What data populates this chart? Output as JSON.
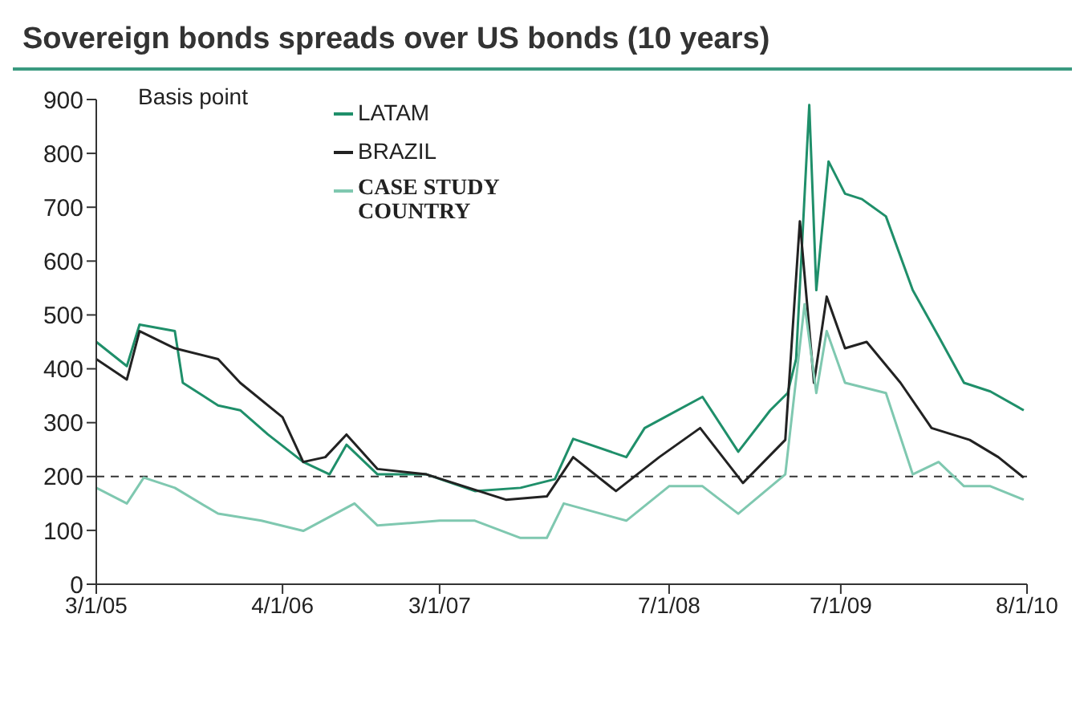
{
  "chart_data": {
    "type": "line",
    "title": "Sovereign bonds spreads over US bonds (10 years)",
    "ylabel": "Basis point",
    "xlim": [
      "2005-03-01",
      "2010-08-01"
    ],
    "xticks": [
      {
        "value": "2005-03-01",
        "label": "3/1/05"
      },
      {
        "value": "2006-04-01",
        "label": "4/1/06"
      },
      {
        "value": "2007-03-01",
        "label": "3/1/07"
      },
      {
        "value": "2008-07-01",
        "label": "7/1/08"
      },
      {
        "value": "2009-07-01",
        "label": "7/1/09"
      },
      {
        "value": "2010-08-01",
        "label": "8/1/10"
      }
    ],
    "ylim": [
      0,
      900
    ],
    "yticks": [
      0,
      100,
      200,
      300,
      400,
      500,
      600,
      700,
      800,
      900
    ],
    "grid": false,
    "legend": "top",
    "marker": "none",
    "line_style": "solid",
    "ref_lines": [
      {
        "axis": "y",
        "value": 200,
        "color": "#333333",
        "line_style": "dashed"
      }
    ],
    "series": [
      {
        "name": "LATAM",
        "color": "#1f8f6a",
        "x": [
          "2005-03-01",
          "2005-05-05",
          "2005-06-01",
          "2005-08-15",
          "2005-09-01",
          "2005-11-15",
          "2006-01-01",
          "2006-03-01",
          "2006-05-15",
          "2006-07-10",
          "2006-08-15",
          "2006-10-20",
          "2007-02-01",
          "2007-05-15",
          "2007-08-20",
          "2007-11-01",
          "2007-12-10",
          "2008-04-01",
          "2008-05-10",
          "2008-09-10",
          "2008-11-25",
          "2009-02-01",
          "2009-03-10",
          "2009-03-28",
          "2009-04-25",
          "2009-05-10",
          "2009-06-05",
          "2009-07-10",
          "2009-08-15",
          "2009-10-05",
          "2009-12-01",
          "2010-01-25",
          "2010-03-20",
          "2010-05-15",
          "2010-07-25"
        ],
        "values": [
          450,
          405,
          482,
          470,
          374,
          332,
          323,
          278,
          227,
          204,
          259,
          204,
          204,
          173,
          179,
          195,
          270,
          236,
          290,
          348,
          246,
          323,
          355,
          418,
          890,
          546,
          785,
          725,
          715,
          683,
          546,
          460,
          374,
          358,
          323
        ]
      },
      {
        "name": "BRAZIL",
        "color": "#222222",
        "x": [
          "2005-03-01",
          "2005-05-05",
          "2005-06-01",
          "2005-08-15",
          "2005-11-15",
          "2006-01-01",
          "2006-04-01",
          "2006-05-15",
          "2006-07-01",
          "2006-08-15",
          "2006-10-20",
          "2007-02-01",
          "2007-07-20",
          "2007-10-15",
          "2007-12-10",
          "2008-03-10",
          "2008-06-10",
          "2008-09-05",
          "2008-12-05",
          "2009-03-05",
          "2009-04-05",
          "2009-05-05",
          "2009-06-01",
          "2009-07-10",
          "2009-08-25",
          "2009-11-05",
          "2010-01-10",
          "2010-04-01",
          "2010-06-01",
          "2010-07-25"
        ],
        "values": [
          418,
          380,
          470,
          438,
          418,
          374,
          310,
          227,
          236,
          278,
          214,
          204,
          157,
          163,
          236,
          173,
          236,
          290,
          188,
          268,
          674,
          374,
          534,
          438,
          450,
          374,
          290,
          268,
          236,
          198
        ]
      },
      {
        "name": "CASE STUDY COUNTRY",
        "color": "#7fc8b0",
        "x": [
          "2005-03-01",
          "2005-05-05",
          "2005-06-10",
          "2005-08-15",
          "2005-11-15",
          "2006-02-15",
          "2006-05-15",
          "2006-09-01",
          "2006-10-20",
          "2007-03-01",
          "2007-05-15",
          "2007-08-20",
          "2007-10-15",
          "2007-11-20",
          "2008-04-01",
          "2008-07-01",
          "2008-09-10",
          "2008-11-25",
          "2009-03-05",
          "2009-04-15",
          "2009-05-10",
          "2009-06-01",
          "2009-07-10",
          "2009-10-05",
          "2009-12-01",
          "2010-01-25",
          "2010-03-20",
          "2010-05-15",
          "2010-07-25"
        ],
        "values": [
          179,
          150,
          198,
          179,
          131,
          118,
          99,
          150,
          109,
          118,
          118,
          86,
          86,
          150,
          118,
          182,
          182,
          131,
          204,
          520,
          355,
          470,
          374,
          355,
          204,
          227,
          182,
          182,
          157
        ]
      }
    ]
  }
}
